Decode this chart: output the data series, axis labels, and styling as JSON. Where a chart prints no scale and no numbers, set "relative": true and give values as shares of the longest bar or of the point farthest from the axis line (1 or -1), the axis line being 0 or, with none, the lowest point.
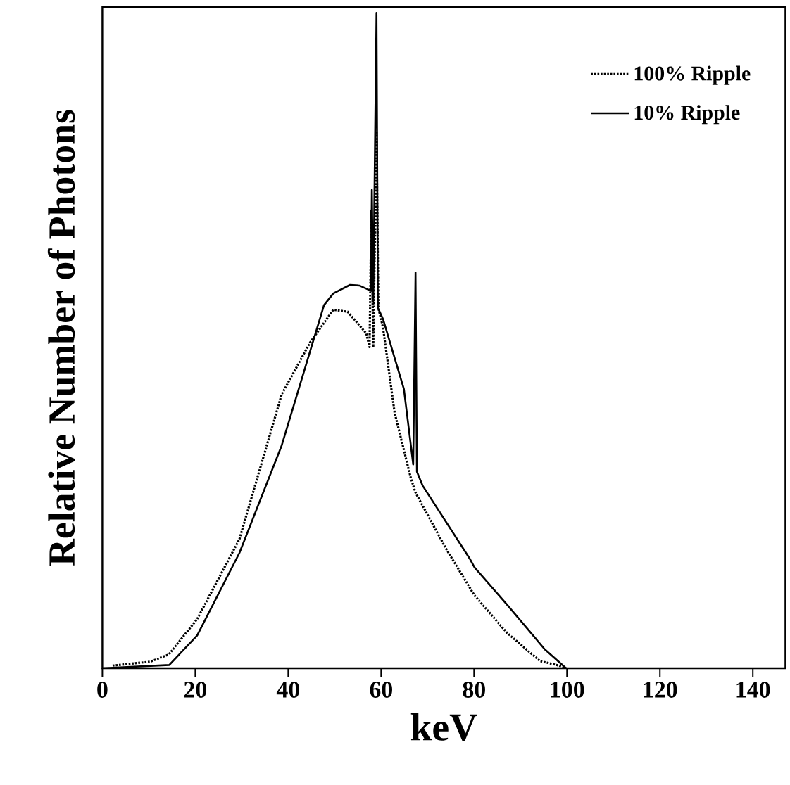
{
  "chart_data": {
    "type": "line",
    "xlabel": "keV",
    "ylabel": "Relative Number of Photons",
    "relative": true,
    "xlim": [
      0,
      147
    ],
    "xticks": [
      0,
      20,
      40,
      60,
      80,
      100,
      120,
      140
    ],
    "legend": "top right",
    "grid": false,
    "marker": "none",
    "series": [
      {
        "name": "100% Ripple",
        "color": "#000000",
        "line_style": "dotted",
        "x": [
          2.2,
          10.3,
          14.3,
          20.4,
          29.5,
          38.6,
          44.7,
          49.7,
          52.8,
          56.8,
          57.5,
          57.9,
          58.3,
          59.0,
          59.4,
          60.4,
          62.9,
          66.4,
          67.4,
          74.0,
          80.1,
          87.1,
          94.2,
          98.3,
          99.8
        ],
        "values": [
          0.004,
          0.01,
          0.021,
          0.075,
          0.197,
          0.418,
          0.497,
          0.547,
          0.544,
          0.511,
          0.49,
          0.7,
          0.49,
          0.82,
          0.55,
          0.52,
          0.39,
          0.29,
          0.268,
          0.182,
          0.111,
          0.054,
          0.011,
          0.004,
          0
        ]
      },
      {
        "name": "10% Ripple",
        "color": "#000000",
        "line_style": "solid",
        "x": [
          0,
          14.4,
          20.4,
          29.5,
          38.6,
          47.7,
          49.7,
          53.3,
          55.3,
          57.8,
          58.0,
          58.3,
          59.0,
          59.3,
          60.4,
          64.9,
          66.9,
          67.4,
          67.7,
          68.9,
          79.0,
          80.1,
          87.1,
          95.2,
          99.8
        ],
        "values": [
          0,
          0.005,
          0.05,
          0.176,
          0.34,
          0.554,
          0.572,
          0.585,
          0.584,
          0.576,
          0.73,
          0.56,
          1.0,
          0.55,
          0.533,
          0.426,
          0.311,
          0.604,
          0.3,
          0.279,
          0.168,
          0.154,
          0.097,
          0.029,
          0
        ]
      }
    ]
  }
}
